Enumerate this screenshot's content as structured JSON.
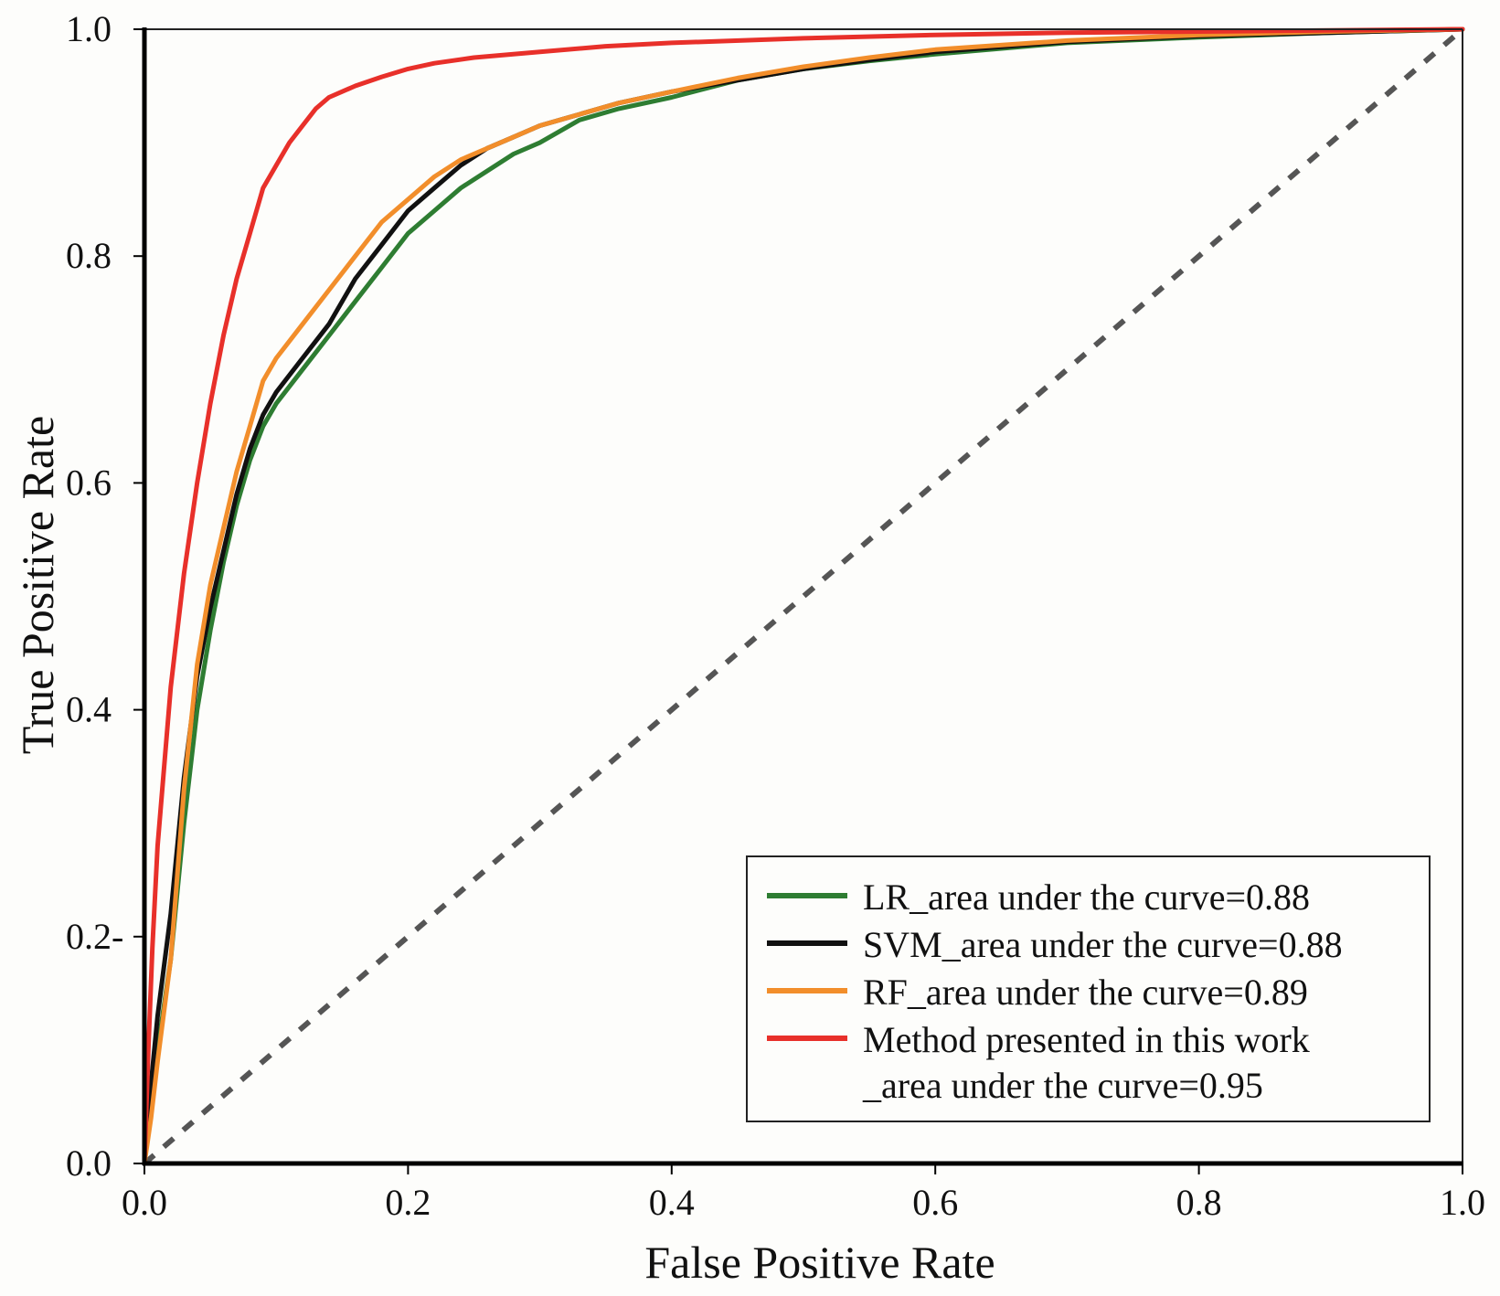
{
  "chart_data": {
    "type": "line",
    "title": "",
    "xlabel": "False Positive Rate",
    "ylabel": "True Positive Rate",
    "xlim": [
      0.0,
      1.0
    ],
    "ylim": [
      0.0,
      1.0
    ],
    "xticks": [
      0.0,
      0.2,
      0.4,
      0.6,
      0.8,
      1.0
    ],
    "yticks": [
      0.0,
      0.2,
      0.4,
      0.6,
      0.8,
      1.0
    ],
    "xtick_labels": [
      "0.0",
      "0.2",
      "0.4",
      "0.6",
      "0.8",
      "1.0"
    ],
    "ytick_labels": [
      "0.0",
      "0.2-",
      "0.4",
      "0.6",
      "0.8",
      "1.0"
    ],
    "grid": false,
    "legend_position": "bottom-right",
    "series": [
      {
        "name": "LR",
        "legend": "LR_area under the curve=0.88",
        "color": "#2e7d32",
        "x": [
          0.0,
          0.005,
          0.01,
          0.02,
          0.03,
          0.04,
          0.05,
          0.06,
          0.07,
          0.08,
          0.09,
          0.1,
          0.12,
          0.14,
          0.16,
          0.18,
          0.2,
          0.22,
          0.24,
          0.26,
          0.28,
          0.3,
          0.33,
          0.36,
          0.4,
          0.45,
          0.5,
          0.55,
          0.6,
          0.7,
          0.8,
          0.9,
          1.0
        ],
        "y": [
          0.0,
          0.05,
          0.1,
          0.18,
          0.3,
          0.4,
          0.47,
          0.53,
          0.58,
          0.62,
          0.65,
          0.67,
          0.7,
          0.73,
          0.76,
          0.79,
          0.82,
          0.84,
          0.86,
          0.875,
          0.89,
          0.9,
          0.92,
          0.93,
          0.94,
          0.955,
          0.965,
          0.972,
          0.978,
          0.988,
          0.993,
          0.997,
          1.0
        ]
      },
      {
        "name": "SVM",
        "legend": "SVM_area under the curve=0.88",
        "color": "#111111",
        "x": [
          0.0,
          0.005,
          0.01,
          0.02,
          0.03,
          0.04,
          0.05,
          0.06,
          0.07,
          0.08,
          0.09,
          0.1,
          0.12,
          0.14,
          0.16,
          0.18,
          0.2,
          0.22,
          0.24,
          0.26,
          0.28,
          0.3,
          0.33,
          0.36,
          0.4,
          0.45,
          0.5,
          0.55,
          0.6,
          0.7,
          0.8,
          0.9,
          1.0
        ],
        "y": [
          0.0,
          0.07,
          0.13,
          0.22,
          0.34,
          0.43,
          0.49,
          0.54,
          0.59,
          0.63,
          0.66,
          0.68,
          0.71,
          0.74,
          0.78,
          0.81,
          0.84,
          0.86,
          0.88,
          0.895,
          0.905,
          0.915,
          0.925,
          0.935,
          0.945,
          0.955,
          0.965,
          0.973,
          0.98,
          0.989,
          0.994,
          0.997,
          1.0
        ]
      },
      {
        "name": "RF",
        "legend": "RF_area under the curve=0.89",
        "color": "#f28e2b",
        "x": [
          0.0,
          0.005,
          0.01,
          0.02,
          0.03,
          0.04,
          0.05,
          0.06,
          0.07,
          0.08,
          0.09,
          0.1,
          0.12,
          0.14,
          0.16,
          0.18,
          0.2,
          0.22,
          0.24,
          0.26,
          0.28,
          0.3,
          0.33,
          0.36,
          0.4,
          0.45,
          0.5,
          0.55,
          0.6,
          0.7,
          0.8,
          0.9,
          1.0
        ],
        "y": [
          0.0,
          0.04,
          0.09,
          0.18,
          0.33,
          0.44,
          0.51,
          0.56,
          0.61,
          0.65,
          0.69,
          0.71,
          0.74,
          0.77,
          0.8,
          0.83,
          0.85,
          0.87,
          0.885,
          0.895,
          0.905,
          0.915,
          0.925,
          0.935,
          0.945,
          0.957,
          0.967,
          0.975,
          0.982,
          0.99,
          0.995,
          0.998,
          1.0
        ]
      },
      {
        "name": "Method presented in this work",
        "legend": "Method presented in this work",
        "legend_line2": "_area under the curve=0.95",
        "color": "#e8302a",
        "x": [
          0.0,
          0.003,
          0.006,
          0.01,
          0.02,
          0.03,
          0.04,
          0.05,
          0.06,
          0.07,
          0.08,
          0.09,
          0.1,
          0.11,
          0.12,
          0.13,
          0.14,
          0.16,
          0.18,
          0.2,
          0.22,
          0.25,
          0.3,
          0.35,
          0.4,
          0.5,
          0.6,
          0.7,
          0.8,
          0.9,
          1.0
        ],
        "y": [
          0.0,
          0.1,
          0.19,
          0.28,
          0.42,
          0.52,
          0.6,
          0.67,
          0.73,
          0.78,
          0.82,
          0.86,
          0.88,
          0.9,
          0.915,
          0.93,
          0.94,
          0.95,
          0.958,
          0.965,
          0.97,
          0.975,
          0.98,
          0.985,
          0.988,
          0.992,
          0.995,
          0.997,
          0.998,
          0.999,
          1.0
        ]
      }
    ],
    "reference_line": {
      "name": "chance",
      "style": "dashed",
      "color": "#555555",
      "x": [
        0.0,
        1.0
      ],
      "y": [
        0.0,
        1.0
      ]
    }
  }
}
